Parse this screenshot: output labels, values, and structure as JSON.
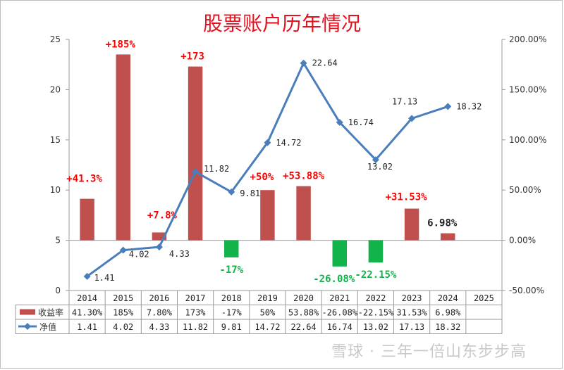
{
  "title": "股票账户历年情况",
  "watermark": "雪球 · 三年一倍山东步步高",
  "chart_data": {
    "type": "bar",
    "categories": [
      "2014",
      "2015",
      "2016",
      "2017",
      "2018",
      "2019",
      "2020",
      "2021",
      "2022",
      "2023",
      "2024",
      "2025"
    ],
    "left_axis": {
      "ylim": [
        0,
        25
      ],
      "ticks": [
        "0",
        "5",
        "10",
        "15",
        "20",
        "25"
      ]
    },
    "right_axis": {
      "ylim": [
        -50,
        200
      ],
      "ticks": [
        "-50.00%",
        "0.00%",
        "50.00%",
        "100.00%",
        "150.00%",
        "200.00%"
      ]
    },
    "series": [
      {
        "name": "收益率",
        "type": "bar",
        "axis": "right",
        "values": [
          41.3,
          185,
          7.8,
          173,
          -17,
          50,
          53.88,
          -26.08,
          -22.15,
          31.53,
          6.98,
          null
        ],
        "table_labels": [
          "41.30%",
          "185%",
          "7.80%",
          "173%",
          "-17%",
          "50%",
          "53.88%",
          "-26.08%",
          "-22.15%",
          "31.53%",
          "6.98%",
          ""
        ],
        "data_labels": [
          "+41.3%",
          "+185%",
          "+7.8%",
          "+173",
          "-17%",
          "+50%",
          "+53.88%",
          "-26.08%",
          "-22.15%",
          "+31.53%",
          "6.98%",
          ""
        ],
        "positive_color": "#c0504d",
        "negative_color": "#12b34a"
      },
      {
        "name": "净值",
        "type": "line",
        "axis": "left",
        "values": [
          1.41,
          4.02,
          4.33,
          11.82,
          9.81,
          14.72,
          22.64,
          16.74,
          13.02,
          17.13,
          18.32,
          null
        ],
        "table_labels": [
          "1.41",
          "4.02",
          "4.33",
          "11.82",
          "9.81",
          "14.72",
          "22.64",
          "16.74",
          "13.02",
          "17.13",
          "18.32",
          ""
        ],
        "data_labels": [
          "1.41",
          "4.02",
          "4.33",
          "11.82",
          "9.81",
          "14.72",
          "22.64",
          "16.74",
          "13.02",
          "17.13",
          "18.32",
          ""
        ],
        "color": "#4a7ebb"
      }
    ],
    "label_colors": {
      "positive": "#ff0000",
      "negative": "#12b34a",
      "neutral": "#222222"
    },
    "grid": false,
    "legend": "table-left"
  }
}
